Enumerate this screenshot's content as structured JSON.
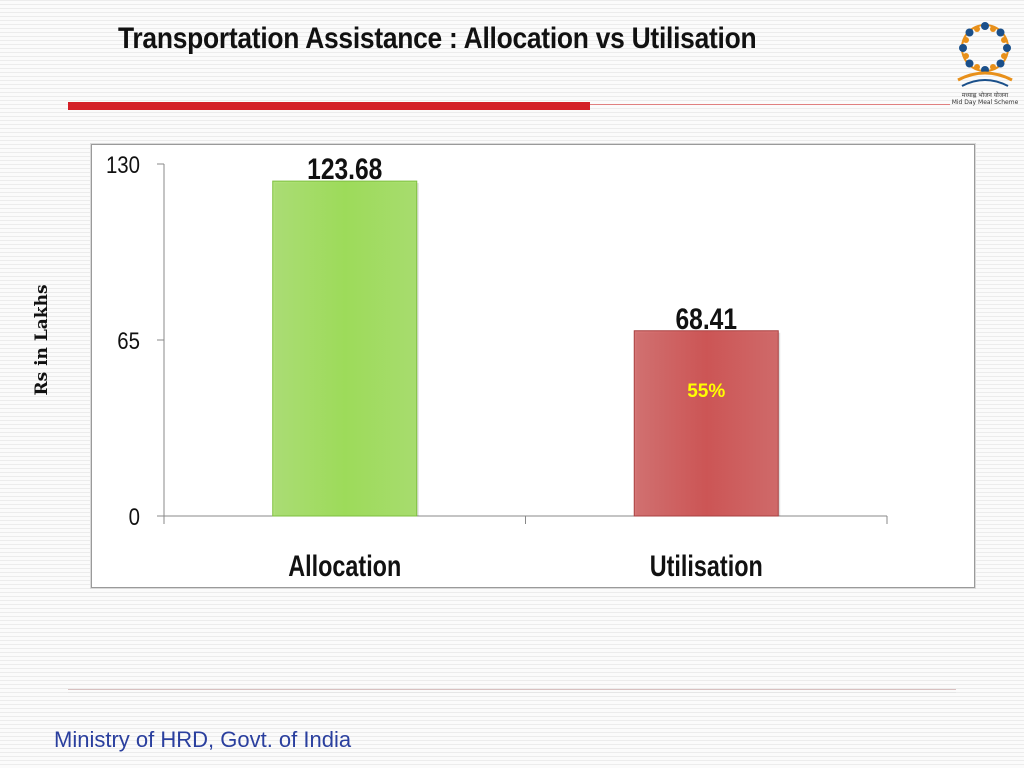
{
  "header": {
    "title": "Transportation Assistance : Allocation vs Utilisation",
    "logo_caption_hindi": "मध्याह्न भोजन योजना",
    "logo_caption": "Mid Day Meal Scheme"
  },
  "footer": {
    "text": "Ministry of HRD, Govt. of India"
  },
  "colors": {
    "allocation": "#9ddb5a",
    "utilisation": "#cc5555",
    "accent_red": "#d42027",
    "footer_blue": "#2a3f9e",
    "percent_label": "#ffff00"
  },
  "chart_data": {
    "type": "bar",
    "categories": [
      "Allocation",
      "Utilisation"
    ],
    "values": [
      123.68,
      68.41
    ],
    "value_labels": [
      "123.68",
      "68.41"
    ],
    "ylabel": "Rs in Lakhs",
    "ylim": [
      0,
      130
    ],
    "yticks": [
      0,
      65,
      130
    ],
    "annotation": "55%",
    "grid": false,
    "legend": "none"
  }
}
